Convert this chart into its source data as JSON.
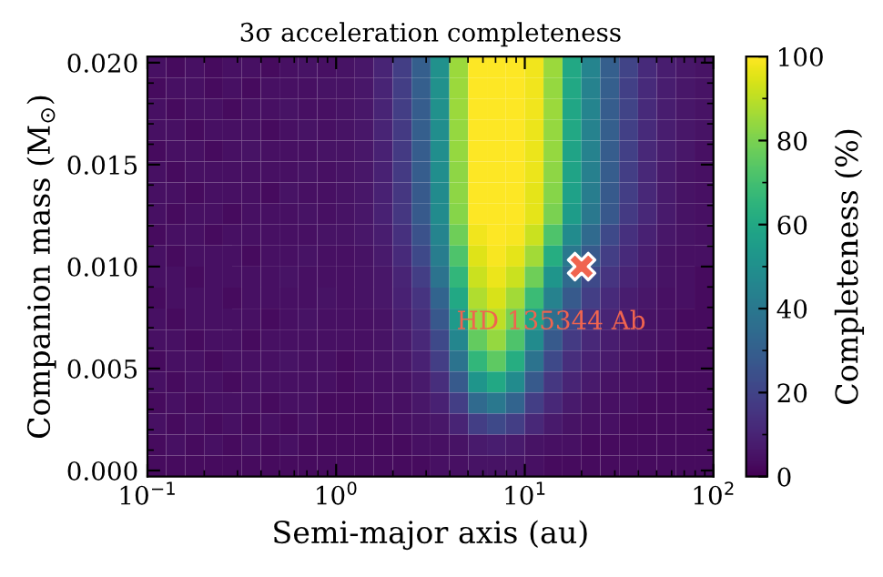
{
  "chart_data": {
    "type": "heatmap",
    "title": "3σ acceleration completeness",
    "xlabel": "Semi-major axis (au)",
    "ylabel": "Companion mass (M$_{⊙}$)",
    "clabel": "Completeness (%)",
    "log": "x",
    "xlim": [
      0.1,
      100
    ],
    "ylim": [
      -0.0003,
      0.0203
    ],
    "xticks": [
      {
        "value": 0.1,
        "label": "10$^{−1}$"
      },
      {
        "value": 1,
        "label": "10$^{0}$"
      },
      {
        "value": 10,
        "label": "10$^{1}$"
      },
      {
        "value": 100,
        "label": "10$^{2}$"
      }
    ],
    "yticks": [
      {
        "value": 0,
        "label": "0.000"
      },
      {
        "value": 0.005,
        "label": "0.005"
      },
      {
        "value": 0.01,
        "label": "0.010"
      },
      {
        "value": 0.015,
        "label": "0.015"
      },
      {
        "value": 0.02,
        "label": "0.020"
      }
    ],
    "clim": [
      0,
      100
    ],
    "cticks": [
      0,
      20,
      40,
      60,
      80,
      100
    ],
    "x": [
      0.112,
      0.141,
      0.178,
      0.224,
      0.282,
      0.355,
      0.447,
      0.562,
      0.708,
      0.891,
      1.12,
      1.41,
      1.78,
      2.24,
      2.82,
      3.55,
      4.47,
      5.62,
      7.08,
      8.91,
      11.2,
      14.1,
      17.8,
      22.4,
      28.2,
      35.5,
      44.7,
      56.2,
      70.8,
      89.1
    ],
    "cells": [
      [
        4,
        3,
        4,
        3,
        4,
        4,
        3,
        4,
        5,
        4,
        5,
        6,
        10,
        18,
        30,
        50,
        85,
        100,
        100,
        100,
        98,
        85,
        60,
        45,
        30,
        20,
        12,
        8,
        6,
        5
      ],
      [
        3,
        4,
        4,
        3,
        4,
        3,
        4,
        4,
        4,
        5,
        5,
        6,
        10,
        18,
        30,
        50,
        85,
        100,
        100,
        100,
        98,
        84,
        60,
        44,
        30,
        19,
        12,
        8,
        6,
        5
      ],
      [
        4,
        3,
        4,
        4,
        3,
        4,
        4,
        5,
        4,
        4,
        5,
        6,
        10,
        18,
        29,
        50,
        85,
        100,
        100,
        100,
        98,
        85,
        59,
        45,
        29,
        20,
        12,
        8,
        6,
        5
      ],
      [
        4,
        4,
        3,
        4,
        4,
        4,
        3,
        4,
        5,
        4,
        5,
        6,
        10,
        17,
        30,
        49,
        84,
        100,
        100,
        100,
        97,
        84,
        60,
        44,
        30,
        19,
        12,
        8,
        6,
        5
      ],
      [
        3,
        4,
        4,
        3,
        4,
        5,
        4,
        4,
        4,
        5,
        5,
        6,
        9,
        17,
        29,
        49,
        84,
        100,
        100,
        100,
        97,
        84,
        58,
        44,
        29,
        19,
        11,
        8,
        6,
        4
      ],
      [
        4,
        3,
        4,
        4,
        4,
        4,
        4,
        4,
        5,
        4,
        5,
        6,
        9,
        17,
        29,
        49,
        83,
        100,
        100,
        100,
        97,
        83,
        58,
        43,
        29,
        18,
        11,
        7,
        5,
        4
      ],
      [
        4,
        4,
        3,
        4,
        4,
        4,
        3,
        5,
        4,
        4,
        5,
        6,
        9,
        16,
        28,
        48,
        83,
        100,
        100,
        100,
        96,
        82,
        57,
        42,
        28,
        18,
        11,
        7,
        5,
        4
      ],
      [
        4,
        3,
        4,
        4,
        3,
        4,
        4,
        4,
        5,
        4,
        5,
        6,
        9,
        16,
        28,
        48,
        82,
        100,
        100,
        100,
        96,
        80,
        55,
        40,
        27,
        17,
        11,
        7,
        5,
        4
      ],
      [
        3,
        4,
        4,
        3,
        4,
        4,
        4,
        4,
        4,
        5,
        5,
        6,
        8,
        14,
        25,
        45,
        78,
        98,
        100,
        99,
        92,
        72,
        48,
        34,
        22,
        14,
        9,
        6,
        5,
        4
      ],
      [
        4,
        3,
        4,
        4,
        4,
        3,
        4,
        4,
        5,
        4,
        4,
        5,
        7,
        12,
        22,
        42,
        72,
        95,
        99,
        96,
        86,
        62,
        40,
        28,
        18,
        12,
        8,
        5,
        4,
        4
      ],
      [
        4,
        4,
        3,
        4,
        4,
        4,
        4,
        5,
        4,
        4,
        4,
        5,
        6,
        10,
        18,
        38,
        66,
        92,
        97,
        92,
        78,
        52,
        34,
        22,
        15,
        10,
        7,
        5,
        4,
        3
      ],
      [
        3,
        4,
        4,
        4,
        3,
        4,
        4,
        4,
        4,
        5,
        4,
        5,
        6,
        9,
        15,
        32,
        60,
        88,
        94,
        86,
        68,
        44,
        28,
        18,
        12,
        8,
        6,
        4,
        4,
        3
      ],
      [
        4,
        3,
        4,
        4,
        4,
        4,
        3,
        4,
        5,
        4,
        4,
        4,
        5,
        8,
        13,
        27,
        54,
        84,
        90,
        80,
        58,
        36,
        22,
        14,
        10,
        7,
        5,
        4,
        3,
        3
      ],
      [
        4,
        4,
        3,
        4,
        4,
        3,
        4,
        4,
        4,
        4,
        4,
        4,
        5,
        7,
        11,
        22,
        46,
        76,
        84,
        72,
        48,
        28,
        17,
        11,
        8,
        6,
        5,
        4,
        3,
        3
      ],
      [
        3,
        4,
        4,
        3,
        4,
        4,
        4,
        5,
        4,
        4,
        3,
        4,
        5,
        6,
        9,
        18,
        38,
        66,
        75,
        62,
        38,
        22,
        13,
        9,
        7,
        5,
        4,
        3,
        3,
        3
      ],
      [
        4,
        3,
        4,
        4,
        3,
        4,
        4,
        4,
        4,
        4,
        3,
        4,
        4,
        5,
        7,
        13,
        28,
        52,
        60,
        48,
        28,
        16,
        10,
        7,
        5,
        4,
        4,
        3,
        3,
        3
      ],
      [
        3,
        4,
        3,
        4,
        4,
        4,
        3,
        4,
        4,
        3,
        3,
        3,
        4,
        4,
        6,
        9,
        18,
        34,
        40,
        32,
        18,
        11,
        7,
        5,
        4,
        4,
        3,
        3,
        3,
        3
      ],
      [
        4,
        3,
        4,
        3,
        4,
        3,
        4,
        3,
        4,
        3,
        3,
        3,
        3,
        4,
        5,
        6,
        10,
        18,
        22,
        18,
        11,
        7,
        5,
        4,
        4,
        3,
        3,
        3,
        3,
        3
      ],
      [
        3,
        4,
        3,
        4,
        3,
        4,
        3,
        4,
        3,
        3,
        3,
        3,
        3,
        3,
        4,
        4,
        5,
        7,
        8,
        7,
        5,
        4,
        4,
        3,
        3,
        3,
        3,
        3,
        3,
        3
      ],
      [
        3,
        3,
        3,
        3,
        3,
        3,
        3,
        3,
        3,
        3,
        3,
        3,
        3,
        3,
        3,
        4,
        4,
        5,
        5,
        5,
        4,
        3,
        3,
        3,
        3,
        3,
        3,
        3,
        3,
        3
      ]
    ],
    "series": [
      {
        "type": "scatter",
        "name": "HD 135344 Ab",
        "color": "#f0644f",
        "x": [
          20
        ],
        "values": [
          0.01
        ],
        "marker": "cross"
      }
    ]
  }
}
